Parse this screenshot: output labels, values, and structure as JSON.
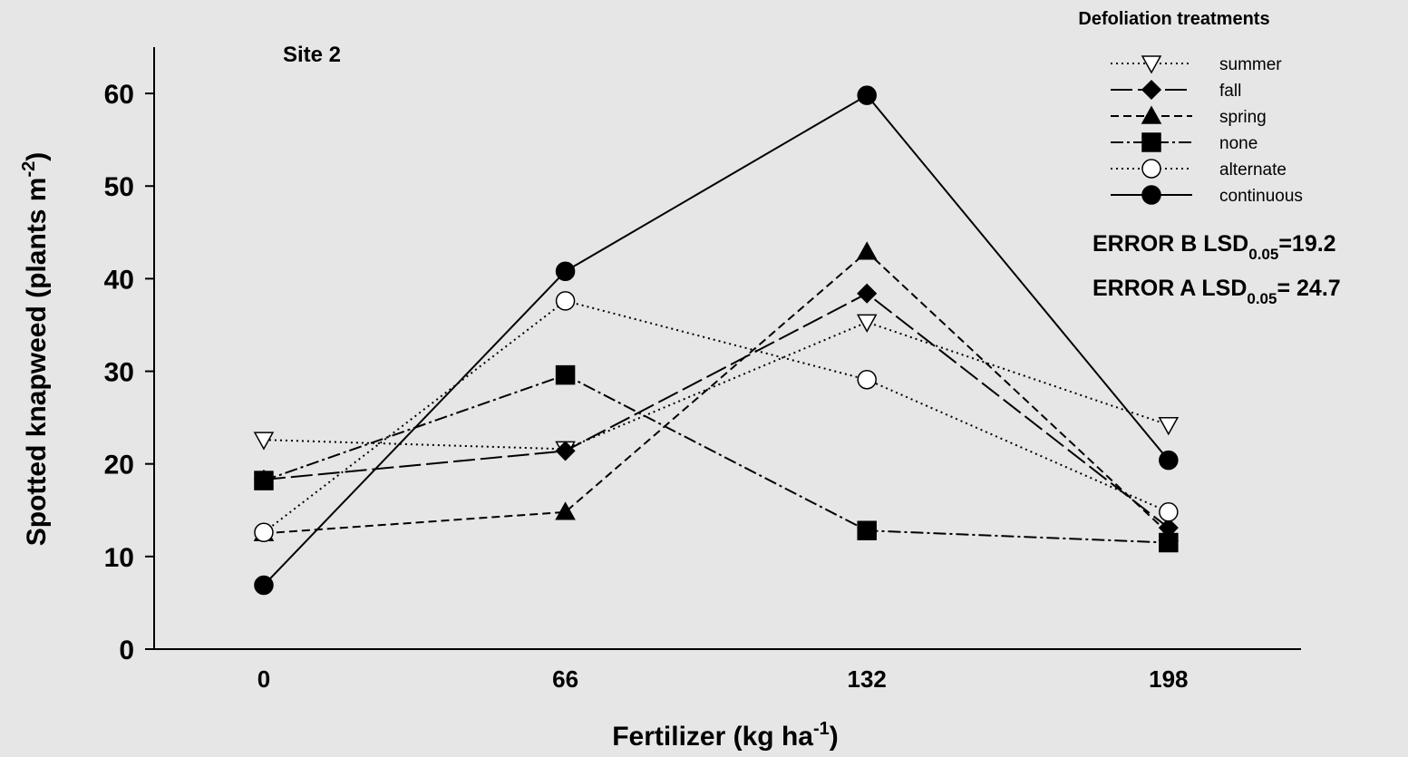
{
  "chart_data": {
    "type": "line",
    "title": "Site 2",
    "x_label": {
      "text": "Fertilizer (kg ha",
      "sup": "-1",
      "end": ")"
    },
    "y_label": {
      "text": "Spotted knapweed (plants m",
      "sup": "-2",
      "end": ")"
    },
    "x": [
      0,
      66,
      132,
      198
    ],
    "xlim": [
      -24,
      227
    ],
    "xticks": [
      0,
      66,
      132,
      198
    ],
    "ylim": [
      0,
      65
    ],
    "yticks": [
      0,
      10,
      20,
      30,
      40,
      50,
      60
    ],
    "grid": false,
    "legend": {
      "title": "Defoliation treatments",
      "position": "upper right"
    },
    "series": [
      {
        "name": "summer",
        "color": "#000000",
        "marker": "triangle-down-open",
        "dash": "dotted",
        "values": [
          22.6,
          21.6,
          35.3,
          24.2
        ]
      },
      {
        "name": "fall",
        "color": "#000000",
        "marker": "diamond",
        "dash": "longdash",
        "values": [
          18.3,
          21.4,
          38.4,
          13.1
        ]
      },
      {
        "name": "spring",
        "color": "#000000",
        "marker": "triangle-up",
        "dash": "dashed",
        "values": [
          12.5,
          14.8,
          42.9,
          12.5
        ]
      },
      {
        "name": "none",
        "color": "#000000",
        "marker": "square",
        "dash": "dashdot",
        "values": [
          18.2,
          29.6,
          12.8,
          11.5
        ]
      },
      {
        "name": "alternate",
        "color": "#000000",
        "marker": "circle-open",
        "dash": "dotted",
        "values": [
          12.6,
          37.6,
          29.1,
          14.8
        ]
      },
      {
        "name": "continuous",
        "color": "#000000",
        "marker": "circle",
        "dash": "solid",
        "values": [
          6.9,
          40.8,
          59.8,
          20.4
        ]
      }
    ],
    "annotations": [
      {
        "text": "ERROR B LSD",
        "sub": "0.05",
        "end": "=19.2"
      },
      {
        "text": "ERROR A LSD",
        "sub": "0.05",
        "end": "= 24.7"
      }
    ]
  }
}
